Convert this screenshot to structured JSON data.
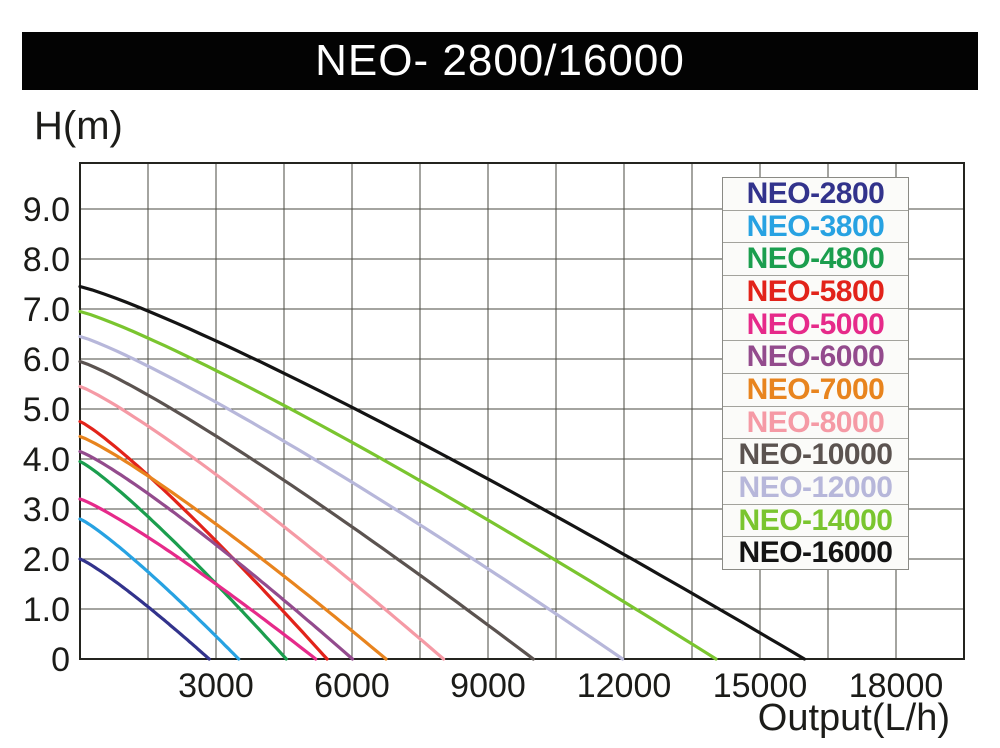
{
  "title_bar": {
    "text": "NEO- 2800/16000"
  },
  "axes": {
    "y_title": "H(m)",
    "x_title": "Output(L/h)"
  },
  "chart_data": {
    "type": "line",
    "title": "NEO- 2800/16000",
    "xlabel": "Output(L/h)",
    "ylabel": "H(m)",
    "xlim": [
      0,
      19500
    ],
    "ylim": [
      0,
      9.92
    ],
    "x_gridline_step": 1500,
    "y_gridline_step": 1.0,
    "grid": true,
    "legend_position": "top-right",
    "x_tick_labels": [
      {
        "value": 3000,
        "label": "3000"
      },
      {
        "value": 6000,
        "label": "6000"
      },
      {
        "value": 9000,
        "label": "9000"
      },
      {
        "value": 12000,
        "label": "12000"
      },
      {
        "value": 15000,
        "label": "15000"
      },
      {
        "value": 18000,
        "label": "18000"
      }
    ],
    "y_tick_labels": [
      {
        "value": 9,
        "label": "9.0"
      },
      {
        "value": 8,
        "label": "8.0"
      },
      {
        "value": 7,
        "label": "7.0"
      },
      {
        "value": 6,
        "label": "6.0"
      },
      {
        "value": 5,
        "label": "5.0"
      },
      {
        "value": 4,
        "label": "4.0"
      },
      {
        "value": 3,
        "label": "3.0"
      },
      {
        "value": 2,
        "label": "2.0"
      },
      {
        "value": 1,
        "label": "1.0"
      },
      {
        "value": 0,
        "label": "0"
      }
    ],
    "curve_model": "H(q) = max_head_m * (1 - (q / max_flow_lh) ^ exponent)",
    "curve_exponent": 1.15,
    "series": [
      {
        "name": "NEO-2800",
        "color": "#32338c",
        "max_head_m": 2.0,
        "max_flow_lh": 2850
      },
      {
        "name": "NEO-3800",
        "color": "#27a2e2",
        "max_head_m": 2.8,
        "max_flow_lh": 3500
      },
      {
        "name": "NEO-4800",
        "color": "#1b9e4e",
        "max_head_m": 3.95,
        "max_flow_lh": 4550
      },
      {
        "name": "NEO-5800",
        "color": "#e2231a",
        "max_head_m": 4.75,
        "max_flow_lh": 5450
      },
      {
        "name": "NEO-5000",
        "color": "#e62a8a",
        "max_head_m": 3.2,
        "max_flow_lh": 5200
      },
      {
        "name": "NEO-6000",
        "color": "#934b8d",
        "max_head_m": 4.15,
        "max_flow_lh": 6010
      },
      {
        "name": "NEO-7000",
        "color": "#e8841e",
        "max_head_m": 4.45,
        "max_flow_lh": 6750
      },
      {
        "name": "NEO-8000",
        "color": "#f59aa5",
        "max_head_m": 5.45,
        "max_flow_lh": 8020
      },
      {
        "name": "NEO-10000",
        "color": "#5b5350",
        "max_head_m": 5.95,
        "max_flow_lh": 10000
      },
      {
        "name": "NEO-12000",
        "color": "#b7b7da",
        "max_head_m": 6.45,
        "max_flow_lh": 11970
      },
      {
        "name": "NEO-14000",
        "color": "#7ac52f",
        "max_head_m": 6.95,
        "max_flow_lh": 14030
      },
      {
        "name": "NEO-16000",
        "color": "#141414",
        "max_head_m": 7.45,
        "max_flow_lh": 15980
      }
    ]
  }
}
